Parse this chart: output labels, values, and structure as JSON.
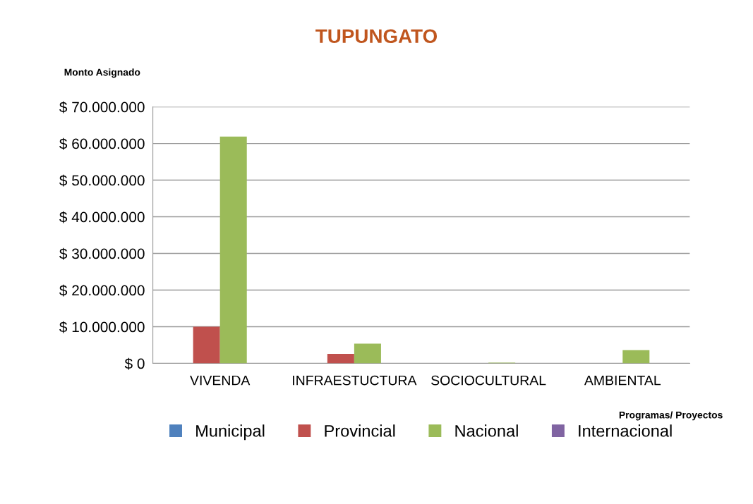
{
  "chart_data": {
    "type": "bar",
    "title": "TUPUNGATO",
    "ylabel": "Monto Asignado",
    "xlabel": "Programas/ Proyectos",
    "categories": [
      "VIVENDA",
      "INFRAESTUCTURA",
      "SOCIOCULTURAL",
      "AMBIENTAL"
    ],
    "series": [
      {
        "name": "Municipal",
        "color": "#4f81bd",
        "values": [
          0,
          0,
          0,
          0
        ]
      },
      {
        "name": "Provincial",
        "color": "#c0504d",
        "values": [
          10000000,
          2600000,
          0,
          0
        ]
      },
      {
        "name": "Nacional",
        "color": "#9bbb59",
        "values": [
          61900000,
          5400000,
          200000,
          3600000
        ]
      },
      {
        "name": "Internacional",
        "color": "#8064a2",
        "values": [
          0,
          0,
          0,
          0
        ]
      }
    ],
    "ylim": [
      0,
      70000000
    ],
    "yticks": [
      {
        "value": 0,
        "label": "$ 0"
      },
      {
        "value": 10000000,
        "label": "$ 10.000.000"
      },
      {
        "value": 20000000,
        "label": "$ 20.000.000"
      },
      {
        "value": 30000000,
        "label": "$ 30.000.000"
      },
      {
        "value": 40000000,
        "label": "$ 40.000.000"
      },
      {
        "value": 50000000,
        "label": "$ 50.000.000"
      },
      {
        "value": 60000000,
        "label": "$ 60.000.000"
      },
      {
        "value": 70000000,
        "label": "$ 70.000.000"
      }
    ],
    "grid": "y",
    "legend": "bottom"
  }
}
